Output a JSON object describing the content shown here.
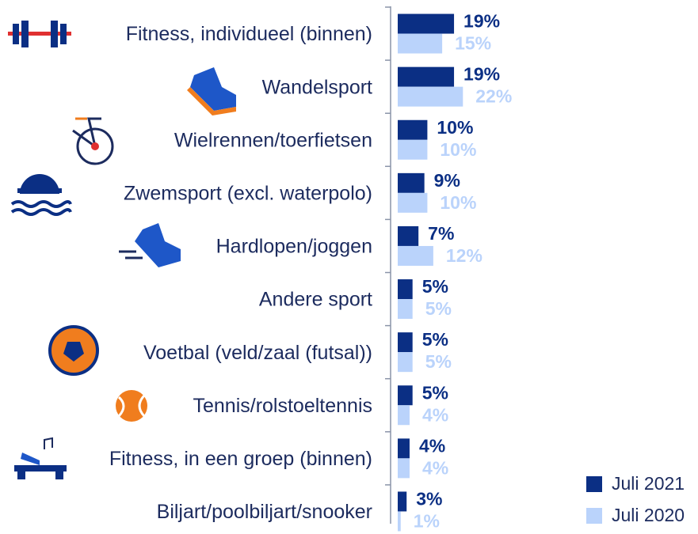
{
  "chart_data": {
    "type": "bar",
    "orientation": "horizontal",
    "categories": [
      "Fitness, individueel (binnen)",
      "Wandelsport",
      "Wielrennen/toerfietsen",
      "Zwemsport (excl. waterpolo)",
      "Hardlopen/joggen",
      "Andere sport",
      "Voetbal (veld/zaal (futsal))",
      "Tennis/rolstoeltennis",
      "Fitness, in een groep (binnen)",
      "Biljart/poolbiljart/snooker"
    ],
    "series": [
      {
        "name": "Juli 2021",
        "color": "#0b2f84",
        "values": [
          19,
          19,
          10,
          9,
          7,
          5,
          5,
          5,
          4,
          3
        ],
        "value_labels": [
          "19%",
          "19%",
          "10%",
          "9%",
          "7%",
          "5%",
          "5%",
          "5%",
          "4%",
          "3%"
        ]
      },
      {
        "name": "Juli 2020",
        "color": "#bad3fb",
        "values": [
          15,
          22,
          10,
          10,
          12,
          5,
          5,
          4,
          4,
          1
        ],
        "value_labels": [
          "15%",
          "22%",
          "10%",
          "10%",
          "12%",
          "5%",
          "5%",
          "4%",
          "4%",
          "1%"
        ]
      }
    ],
    "legend": "bottom-right"
  }
}
